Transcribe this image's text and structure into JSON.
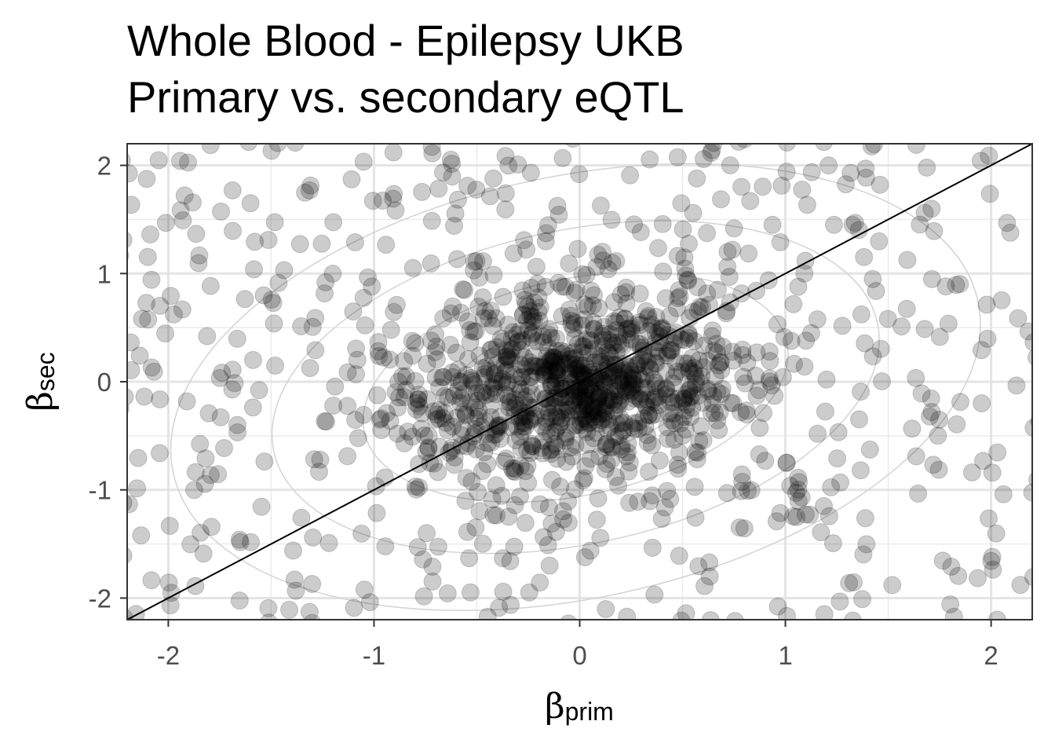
{
  "chart_data": {
    "type": "scatter",
    "title": "Whole Blood - Epilepsy UKB",
    "subtitle": "Primary vs. secondary eQTL",
    "xlabel": {
      "symbol": "β",
      "subscript": "prim"
    },
    "ylabel": {
      "symbol": "β",
      "subscript": "sec"
    },
    "xlim": [
      -2.2,
      2.2
    ],
    "ylim": [
      -2.2,
      2.2
    ],
    "xticks": [
      -2,
      -1,
      0,
      1,
      2
    ],
    "yticks": [
      -2,
      -1,
      0,
      1,
      2
    ],
    "xtick_labels": [
      "-2",
      "-1",
      "0",
      "1",
      "2"
    ],
    "ytick_labels": [
      "-2",
      "-1",
      "0",
      "1",
      "2"
    ],
    "grid": true,
    "reference_line": {
      "slope": 1,
      "intercept": 0
    },
    "density_contours": true,
    "point_color": "#000000",
    "point_alpha": 0.2,
    "contour_color": "#d3d3d3",
    "points": {
      "n": 1400,
      "core_fraction": 0.62,
      "core_sd": [
        0.42,
        0.45
      ],
      "core_correlation": 0.15,
      "background_range": [
        -2.25,
        2.25
      ],
      "seed": 17
    }
  }
}
